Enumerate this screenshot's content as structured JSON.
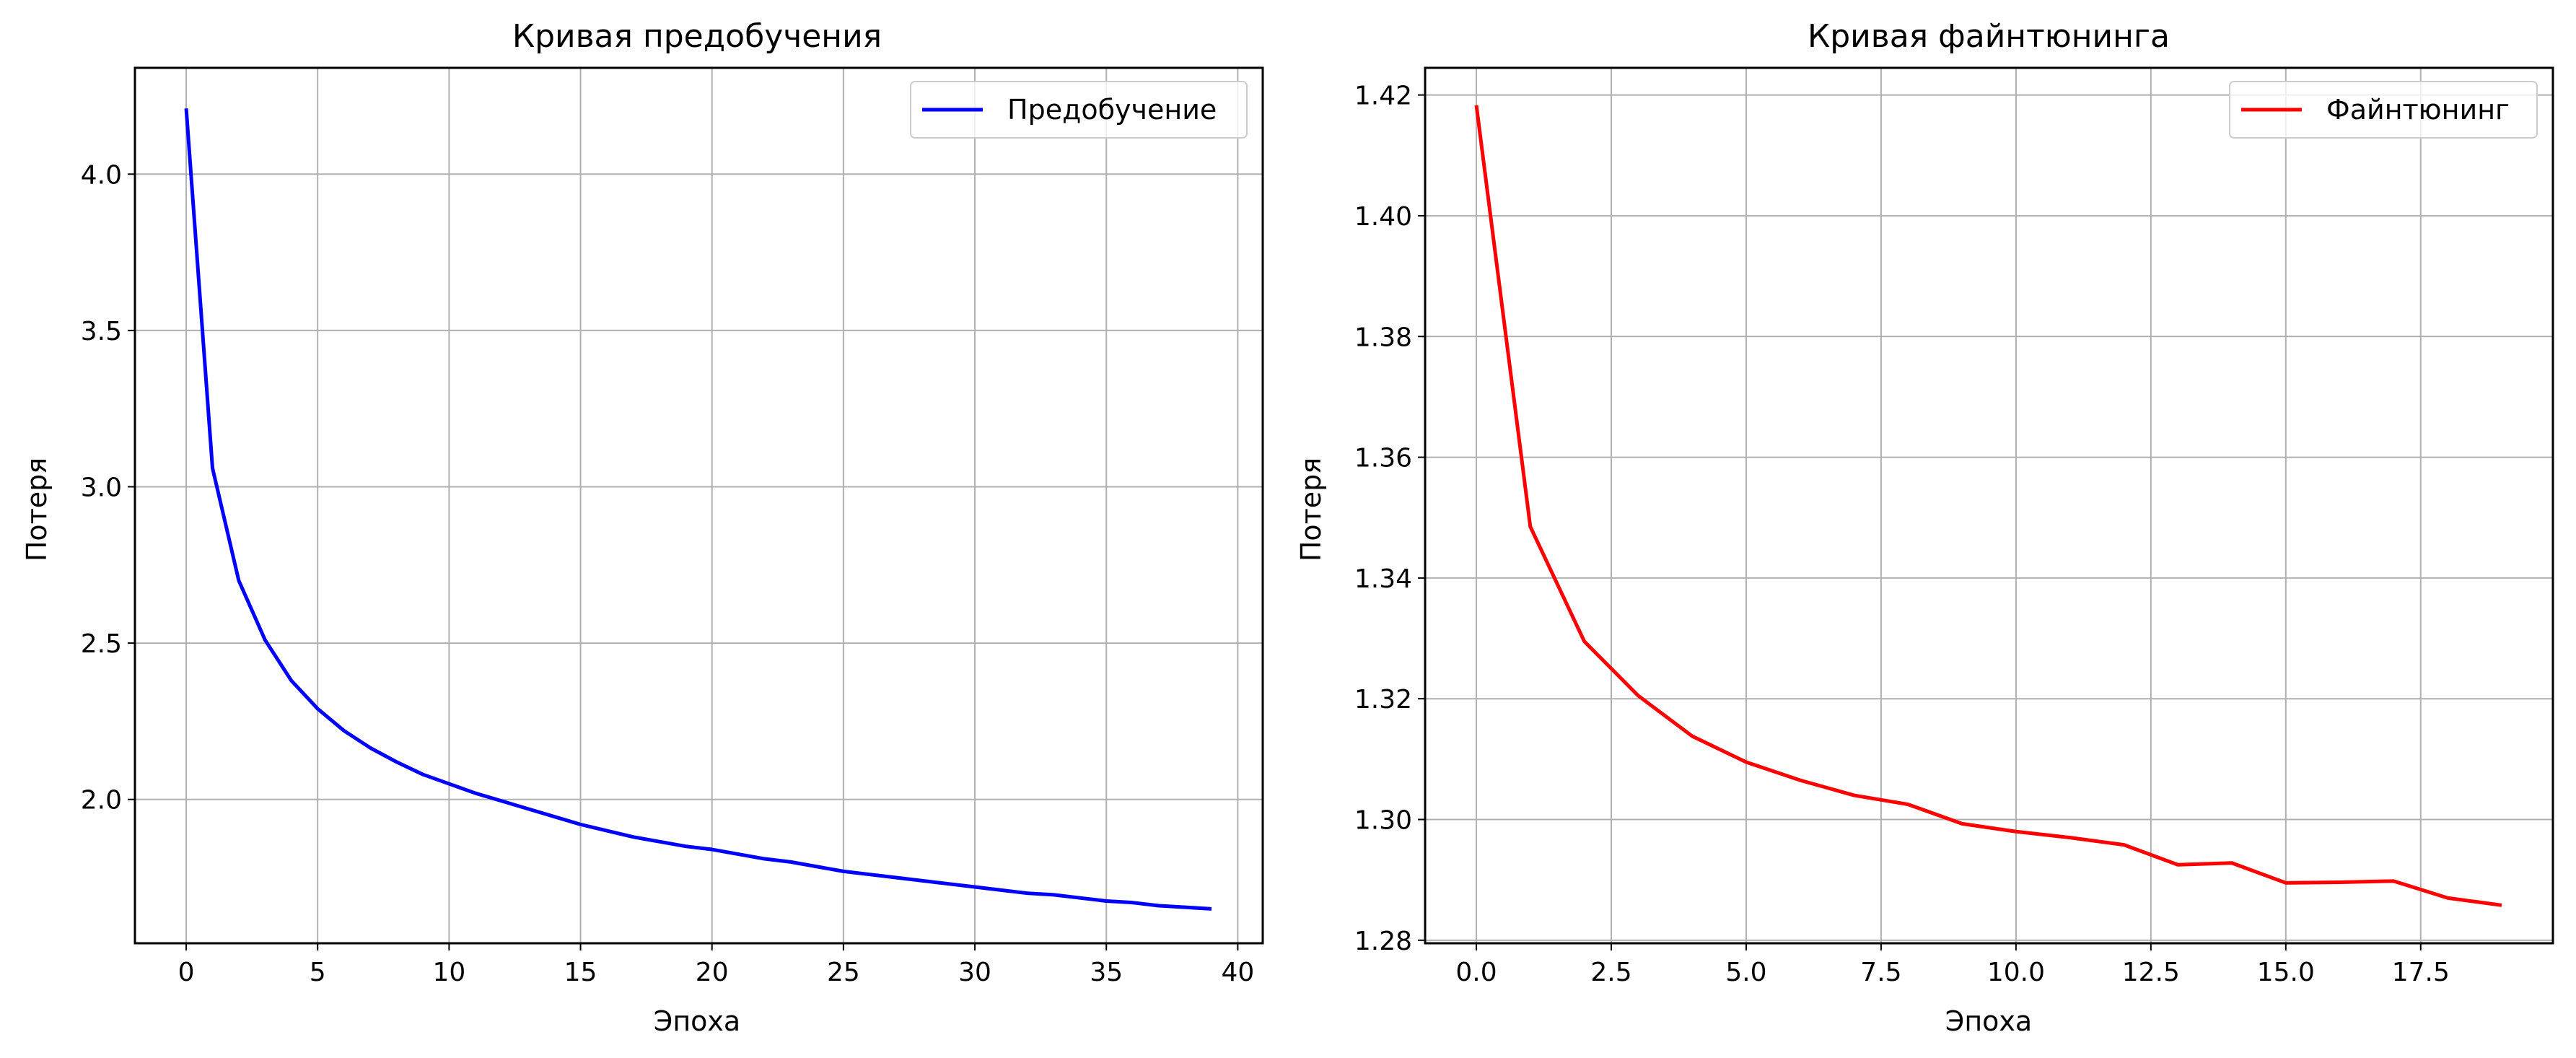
{
  "chart_data": [
    {
      "type": "line",
      "title": "Кривая предобучения",
      "xlabel": "Эпоха",
      "ylabel": "Потеря",
      "xlim": [
        -1.95,
        40.95
      ],
      "ylim": [
        1.54,
        4.34
      ],
      "xticks": [
        0,
        5,
        10,
        15,
        20,
        25,
        30,
        35,
        40
      ],
      "xtick_labels": [
        "0",
        "5",
        "10",
        "15",
        "20",
        "25",
        "30",
        "35",
        "40"
      ],
      "yticks": [
        2.0,
        2.5,
        3.0,
        3.5,
        4.0
      ],
      "ytick_labels": [
        "2.0",
        "2.5",
        "3.0",
        "3.5",
        "4.0"
      ],
      "grid": true,
      "legend_position": "top-right",
      "series": [
        {
          "name": "Предобучение",
          "color": "#0000ff",
          "x": [
            0,
            1,
            2,
            3,
            4,
            5,
            6,
            7,
            8,
            9,
            10,
            11,
            12,
            13,
            14,
            15,
            16,
            17,
            18,
            19,
            20,
            21,
            22,
            23,
            24,
            25,
            26,
            27,
            28,
            29,
            30,
            31,
            32,
            33,
            34,
            35,
            36,
            37,
            38,
            39
          ],
          "y": [
            4.21,
            3.06,
            2.7,
            2.51,
            2.38,
            2.29,
            2.22,
            2.165,
            2.12,
            2.08,
            2.05,
            2.02,
            1.995,
            1.97,
            1.945,
            1.92,
            1.9,
            1.88,
            1.865,
            1.85,
            1.84,
            1.825,
            1.81,
            1.8,
            1.785,
            1.77,
            1.76,
            1.75,
            1.74,
            1.73,
            1.72,
            1.71,
            1.7,
            1.695,
            1.685,
            1.675,
            1.67,
            1.66,
            1.655,
            1.65
          ]
        }
      ]
    },
    {
      "type": "line",
      "title": "Кривая файнтюнинга",
      "xlabel": "Эпоха",
      "ylabel": "Потеря",
      "xlim": [
        -0.95,
        19.95
      ],
      "ylim": [
        1.2795,
        1.4245
      ],
      "xticks": [
        0.0,
        2.5,
        5.0,
        7.5,
        10.0,
        12.5,
        15.0,
        17.5
      ],
      "xtick_labels": [
        "0.0",
        "2.5",
        "5.0",
        "7.5",
        "10.0",
        "12.5",
        "15.0",
        "17.5"
      ],
      "yticks": [
        1.28,
        1.3,
        1.32,
        1.34,
        1.36,
        1.38,
        1.4,
        1.42
      ],
      "ytick_labels": [
        "1.28",
        "1.30",
        "1.32",
        "1.34",
        "1.36",
        "1.38",
        "1.40",
        "1.42"
      ],
      "grid": true,
      "legend_position": "top-right",
      "series": [
        {
          "name": "Файнтюнинг",
          "color": "#ff0000",
          "x": [
            0,
            1,
            2,
            3,
            4,
            5,
            6,
            7,
            8,
            9,
            10,
            11,
            12,
            13,
            14,
            15,
            16,
            17,
            18,
            19
          ],
          "y": [
            1.4183,
            1.3485,
            1.3295,
            1.3205,
            1.3138,
            1.3095,
            1.3065,
            1.304,
            1.3025,
            1.2993,
            1.298,
            1.297,
            1.2958,
            1.2925,
            1.2928,
            1.2895,
            1.2896,
            1.2898,
            1.287,
            1.2858
          ]
        }
      ]
    }
  ]
}
